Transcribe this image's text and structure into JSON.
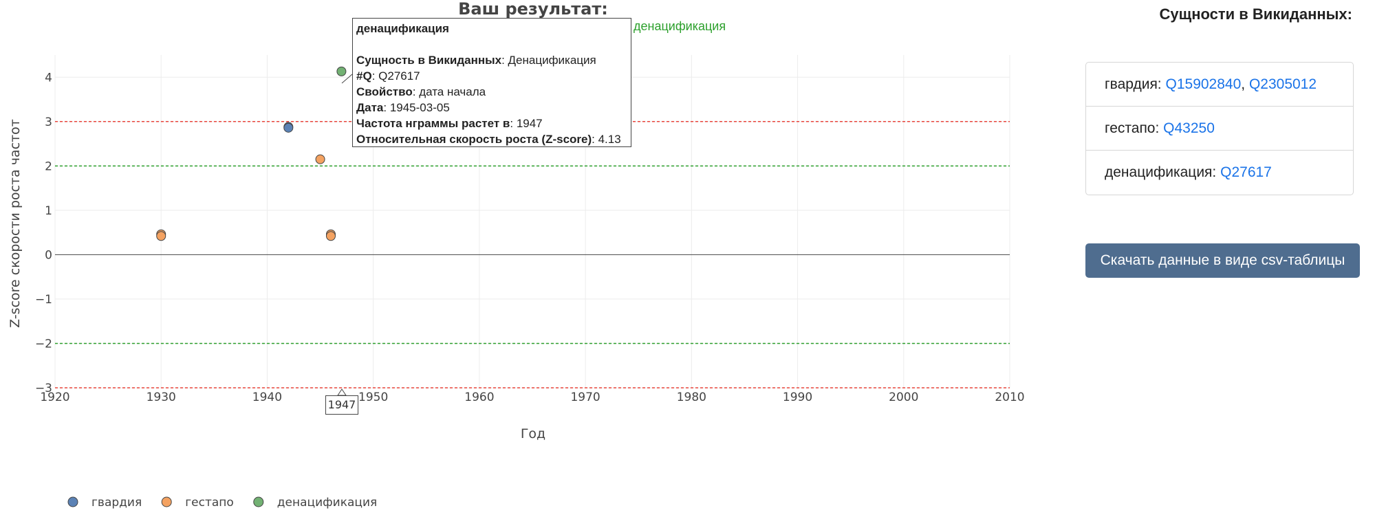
{
  "chart_data": {
    "type": "scatter",
    "title": "Ваш результат:",
    "xlabel": "Год",
    "ylabel": "Z-score скорости роста частот",
    "xlim": [
      1920,
      2010
    ],
    "ylim": [
      -3,
      4.5
    ],
    "x_ticks": [
      1920,
      1930,
      1940,
      1950,
      1960,
      1970,
      1980,
      1990,
      2000,
      2010
    ],
    "y_ticks": [
      4,
      3,
      2,
      1,
      0,
      -1,
      -2,
      -3
    ],
    "y_tick_labels": [
      "4",
      "3",
      "2",
      "1",
      "0",
      "−1",
      "−2",
      "−3"
    ],
    "grid": true,
    "reference_lines": [
      {
        "y": 3,
        "color": "#e8453c",
        "style": "dashed"
      },
      {
        "y": -3,
        "color": "#e8453c",
        "style": "dashed"
      },
      {
        "y": 2,
        "color": "#2ca02c",
        "style": "dashed"
      },
      {
        "y": -2,
        "color": "#2ca02c",
        "style": "dashed"
      }
    ],
    "legend_position": "bottom-left",
    "series": [
      {
        "name": "гвардия",
        "color": "#5b82b5",
        "points": [
          {
            "x": 1942,
            "y": 2.88
          },
          {
            "x": 1942,
            "y": 2.86
          }
        ]
      },
      {
        "name": "гестапо",
        "color": "#f4a261",
        "points": [
          {
            "x": 1930,
            "y": 0.46
          },
          {
            "x": 1930,
            "y": 0.42
          },
          {
            "x": 1945,
            "y": 2.15
          },
          {
            "x": 1946,
            "y": 0.46
          },
          {
            "x": 1946,
            "y": 0.42
          }
        ]
      },
      {
        "name": "денацификация",
        "color": "#72b173",
        "points": [
          {
            "x": 1947,
            "y": 4.13
          }
        ]
      }
    ]
  },
  "tooltip": {
    "name": "денацификация",
    "entity_label": "Сущность в Викиданных",
    "entity_value": "Денацификация",
    "q_label": "#Q",
    "q_value": "Q27617",
    "property_label": "Свойство",
    "property_value": "дата начала",
    "date_label": "Дата",
    "date_value": "1945-03-05",
    "freq_label": "Частота нграммы растет в",
    "freq_value": "1947",
    "z_label": "Относительная скорость роста (Z-score)",
    "z_value": "4.13",
    "trace_name": "денацификация",
    "x_hover": "1947"
  },
  "sidebar": {
    "title": "Сущности в Викиданных:",
    "entities": [
      {
        "label": "гвардия:",
        "links": [
          "Q15902840",
          "Q2305012"
        ]
      },
      {
        "label": "гестапо:",
        "links": [
          "Q43250"
        ]
      },
      {
        "label": "денацификация:",
        "links": [
          "Q27617"
        ]
      }
    ],
    "download_label": "Скачать данные в виде csv-таблицы"
  }
}
